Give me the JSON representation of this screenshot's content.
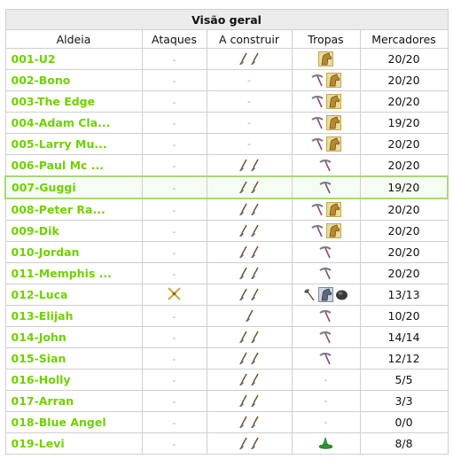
{
  "title": "Visão geral",
  "columns": [
    "Aldeia",
    "Ataques",
    "A construir",
    "Tropas",
    "Mercadores"
  ],
  "dash": "-",
  "rows": [
    {
      "name": "001-U2",
      "attacks": "",
      "build": [
        "shovel",
        "shovel"
      ],
      "troops": [
        "horse"
      ],
      "merchants": "20/20"
    },
    {
      "name": "002-Bono",
      "attacks": "",
      "build": [],
      "troops": [
        "pickaxe",
        "horse"
      ],
      "merchants": "20/20"
    },
    {
      "name": "003-The Edge",
      "attacks": "",
      "build": [],
      "troops": [
        "pickaxe",
        "horse"
      ],
      "merchants": "20/20"
    },
    {
      "name": "004-Adam Cla...",
      "attacks": "",
      "build": [],
      "troops": [
        "pickaxe",
        "horse"
      ],
      "merchants": "19/20"
    },
    {
      "name": "005-Larry Mu...",
      "attacks": "",
      "build": [],
      "troops": [
        "pickaxe",
        "horse"
      ],
      "merchants": "20/20"
    },
    {
      "name": "006-Paul Mc ...",
      "attacks": "",
      "build": [
        "shovel",
        "shovel"
      ],
      "troops": [
        "pickaxe"
      ],
      "merchants": "20/20"
    },
    {
      "name": "007-Guggi",
      "attacks": "",
      "build": [
        "shovel",
        "shovel"
      ],
      "troops": [
        "pickaxe"
      ],
      "merchants": "19/20",
      "highlight": true
    },
    {
      "name": "008-Peter Ra...",
      "attacks": "",
      "build": [
        "shovel",
        "shovel"
      ],
      "troops": [
        "pickaxe",
        "horse"
      ],
      "merchants": "20/20"
    },
    {
      "name": "009-Dik",
      "attacks": "",
      "build": [
        "shovel",
        "shovel"
      ],
      "troops": [
        "pickaxe",
        "horse"
      ],
      "merchants": "20/20"
    },
    {
      "name": "010-Jordan",
      "attacks": "",
      "build": [
        "shovel",
        "shovel"
      ],
      "troops": [
        "pickaxe"
      ],
      "merchants": "20/20"
    },
    {
      "name": "011-Memphis ...",
      "attacks": "",
      "build": [
        "shovel",
        "shovel"
      ],
      "troops": [
        "pickaxe"
      ],
      "merchants": "20/20"
    },
    {
      "name": "012-Luca",
      "attacks": "swords",
      "build": [
        "shovel",
        "shovel"
      ],
      "troops": [
        "axe",
        "knight",
        "ram"
      ],
      "merchants": "13/13"
    },
    {
      "name": "013-Elijah",
      "attacks": "",
      "build": [
        "shovel"
      ],
      "troops": [
        "pickaxe"
      ],
      "merchants": "10/20"
    },
    {
      "name": "014-John",
      "attacks": "",
      "build": [
        "shovel",
        "shovel"
      ],
      "troops": [
        "pickaxe"
      ],
      "merchants": "14/14"
    },
    {
      "name": "015-Sian",
      "attacks": "",
      "build": [
        "shovel",
        "shovel"
      ],
      "troops": [
        "pickaxe"
      ],
      "merchants": "12/12"
    },
    {
      "name": "016-Holly",
      "attacks": "",
      "build": [
        "shovel",
        "shovel"
      ],
      "troops": [],
      "merchants": "5/5"
    },
    {
      "name": "017-Arran",
      "attacks": "",
      "build": [
        "shovel",
        "shovel"
      ],
      "troops": [],
      "merchants": "3/3"
    },
    {
      "name": "018-Blue Angel",
      "attacks": "",
      "build": [
        "shovel",
        "shovel"
      ],
      "troops": [],
      "merchants": "0/0"
    },
    {
      "name": "019-Levi",
      "attacks": "",
      "build": [
        "shovel",
        "shovel"
      ],
      "troops": [
        "hat"
      ],
      "merchants": "8/8"
    }
  ]
}
